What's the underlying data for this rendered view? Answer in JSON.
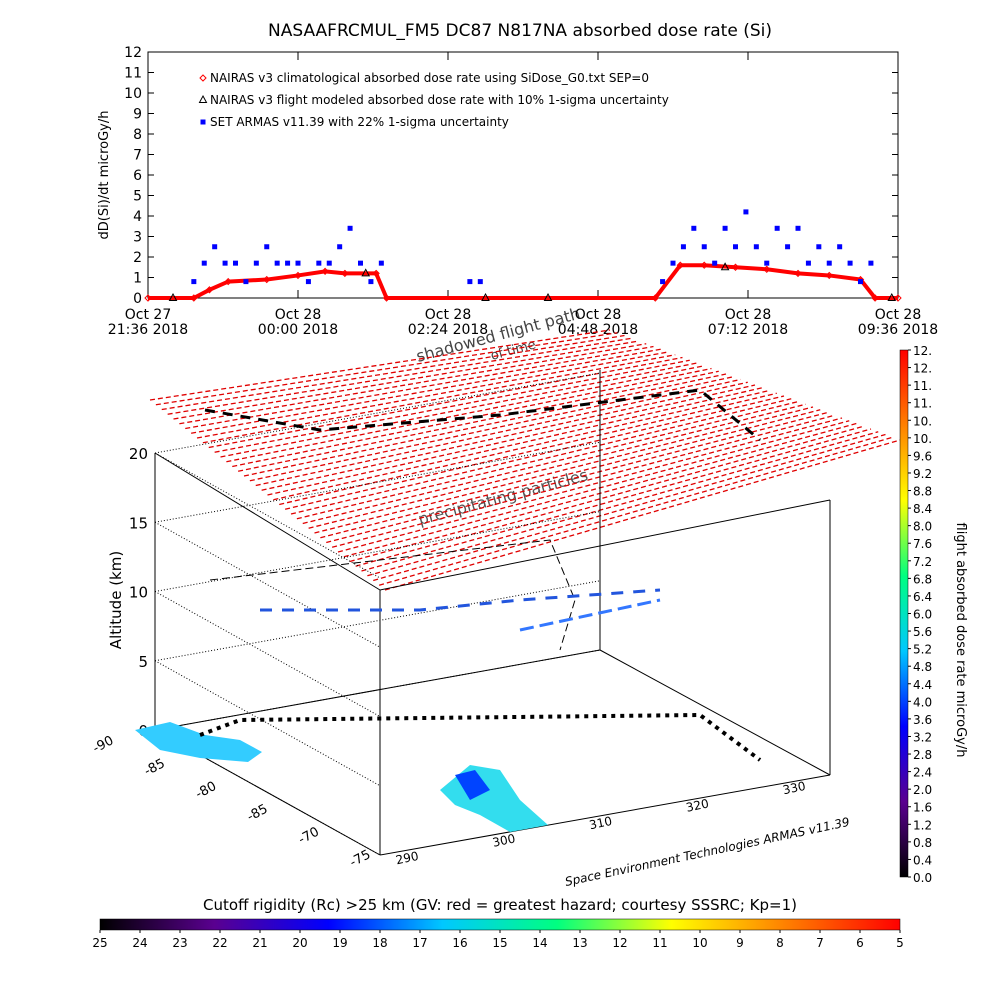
{
  "chart_data": [
    {
      "type": "line",
      "title": "NASAAFRCMUL_FM5 DC87 N817NA absorbed dose rate (Si)",
      "y_label": "dD(Si)/dt microGy/h",
      "xlim": [
        "2018-10-27T21:36",
        "2018-10-28T09:36"
      ],
      "xticks": [
        {
          "value": "2018-10-27T21:36",
          "label": [
            "Oct 27",
            "21:36 2018"
          ]
        },
        {
          "value": "2018-10-28T00:00",
          "label": [
            "Oct 28",
            "00:00 2018"
          ]
        },
        {
          "value": "2018-10-28T02:24",
          "label": [
            "Oct 28",
            "02:24 2018"
          ]
        },
        {
          "value": "2018-10-28T04:48",
          "label": [
            "Oct 28",
            "04:48 2018"
          ]
        },
        {
          "value": "2018-10-28T07:12",
          "label": [
            "Oct 28",
            "07:12 2018"
          ]
        },
        {
          "value": "2018-10-28T09:36",
          "label": [
            "Oct 28",
            "09:36 2018"
          ]
        }
      ],
      "ylim": [
        0,
        12
      ],
      "yticks": [
        0,
        1,
        2,
        3,
        4,
        5,
        6,
        7,
        8,
        9,
        10,
        11,
        12
      ],
      "series": [
        {
          "name": "NAIRAS v3 climatological absorbed dose rate using SiDose_G0.txt SEP=0",
          "color": "#ff0000",
          "marker": "diamond",
          "line": true,
          "x": [
            "2018-10-27T21:36",
            "2018-10-27T22:20",
            "2018-10-27T22:35",
            "2018-10-27T22:53",
            "2018-10-27T23:30",
            "2018-10-28T00:00",
            "2018-10-28T00:26",
            "2018-10-28T00:45",
            "2018-10-28T01:15",
            "2018-10-28T01:25",
            "2018-10-28T05:43",
            "2018-10-28T06:07",
            "2018-10-28T06:30",
            "2018-10-28T07:00",
            "2018-10-28T07:30",
            "2018-10-28T08:00",
            "2018-10-28T08:30",
            "2018-10-28T09:00",
            "2018-10-28T09:14",
            "2018-10-28T09:36"
          ],
          "values": [
            0,
            0,
            0.4,
            0.8,
            0.9,
            1.1,
            1.3,
            1.2,
            1.2,
            0,
            0,
            1.6,
            1.6,
            1.5,
            1.4,
            1.2,
            1.1,
            0.9,
            0,
            0
          ]
        },
        {
          "name": "NAIRAS v3 flight modeled absorbed dose rate with 10% 1-sigma uncertainty",
          "color": "#000000",
          "marker": "triangle",
          "line": false,
          "x": [
            "2018-10-27T22:00",
            "2018-10-28T01:05",
            "2018-10-28T03:00",
            "2018-10-28T04:00",
            "2018-10-28T06:50",
            "2018-10-28T09:30"
          ],
          "values": [
            0,
            1.2,
            0,
            0,
            1.5,
            0
          ]
        },
        {
          "name": "SET ARMAS v11.39 with 22% 1-sigma uncertainty",
          "color": "#0000ff",
          "marker": "square",
          "line": false,
          "x": [
            "2018-10-27T22:20",
            "2018-10-27T22:30",
            "2018-10-27T22:40",
            "2018-10-27T22:50",
            "2018-10-27T23:00",
            "2018-10-27T23:10",
            "2018-10-27T23:20",
            "2018-10-27T23:30",
            "2018-10-27T23:40",
            "2018-10-27T23:50",
            "2018-10-28T00:00",
            "2018-10-28T00:10",
            "2018-10-28T00:20",
            "2018-10-28T00:30",
            "2018-10-28T00:40",
            "2018-10-28T00:50",
            "2018-10-28T01:00",
            "2018-10-28T01:10",
            "2018-10-28T01:20",
            "2018-10-28T02:45",
            "2018-10-28T02:55",
            "2018-10-28T05:50",
            "2018-10-28T06:00",
            "2018-10-28T06:10",
            "2018-10-28T06:20",
            "2018-10-28T06:30",
            "2018-10-28T06:40",
            "2018-10-28T06:50",
            "2018-10-28T07:00",
            "2018-10-28T07:10",
            "2018-10-28T07:20",
            "2018-10-28T07:30",
            "2018-10-28T07:40",
            "2018-10-28T07:50",
            "2018-10-28T08:00",
            "2018-10-28T08:10",
            "2018-10-28T08:20",
            "2018-10-28T08:30",
            "2018-10-28T08:40",
            "2018-10-28T08:50",
            "2018-10-28T09:00",
            "2018-10-28T09:10"
          ],
          "values": [
            0.8,
            1.7,
            2.5,
            1.7,
            1.7,
            0.8,
            1.7,
            2.5,
            1.7,
            1.7,
            1.7,
            0.8,
            1.7,
            1.7,
            2.5,
            3.4,
            1.7,
            0.8,
            1.7,
            0.8,
            0.8,
            0.8,
            1.7,
            2.5,
            3.4,
            2.5,
            1.7,
            3.4,
            2.5,
            4.2,
            2.5,
            1.7,
            3.4,
            2.5,
            3.4,
            1.7,
            2.5,
            1.7,
            2.5,
            1.7,
            0.8,
            1.7
          ]
        }
      ]
    },
    {
      "type": "surface3d",
      "z_label": "Altitude (km)",
      "zlim": [
        0,
        20
      ],
      "zticks": [
        0,
        5,
        10,
        15,
        20
      ],
      "lat_labels": [
        "-90",
        "-85",
        "-80",
        "-85",
        "-70",
        "-75"
      ],
      "lon_labels": [
        "290",
        "300",
        "310",
        "320",
        "330"
      ],
      "annotations": [
        "precipitating particles",
        "shadowed flight path",
        "of time"
      ],
      "credit": "Space Environment Technologies ARMAS v11.39"
    },
    {
      "type": "colorbar",
      "orientation": "vertical",
      "label": "flight absorbed dose rate microGy/h",
      "lim": [
        0,
        12
      ],
      "colors": [
        "#000000",
        "#5a0090",
        "#0000ff",
        "#00c8ff",
        "#00ff80",
        "#ffff00",
        "#ff8000",
        "#ff0000"
      ],
      "ticks": [
        {
          "value": 0,
          "label": "0.0"
        },
        0.4,
        0.8,
        1.2,
        1.6,
        {
          "value": 2,
          "label": "2.0"
        },
        2.4,
        2.8,
        3.2,
        3.6,
        {
          "value": 4,
          "label": "4.0"
        },
        4.4,
        4.8,
        5.2,
        5.6,
        {
          "value": 6,
          "label": "6.0"
        },
        6.4,
        6.8,
        7.2,
        7.6,
        {
          "value": 8,
          "label": "8.0"
        },
        8.4,
        8.8,
        9.2,
        9.6,
        {
          "value": 10,
          "label": "10."
        },
        {
          "value": 10.4,
          "label": "10."
        },
        {
          "value": 10.8,
          "label": "11."
        },
        {
          "value": 11.2,
          "label": "11."
        },
        {
          "value": 11.6,
          "label": "12."
        },
        {
          "value": 12,
          "label": "12."
        }
      ]
    },
    {
      "type": "colorbar",
      "orientation": "horizontal",
      "label": "Cutoff rigidity (Rc) >25 km (GV: red = greatest hazard; courtesy SSSRC; Kp=1)",
      "lim": [
        25,
        5
      ],
      "colors": [
        "#000000",
        "#5a0090",
        "#0000ff",
        "#00c8ff",
        "#00ff80",
        "#ffff00",
        "#ff8000",
        "#ff0000"
      ],
      "ticks": [
        25,
        24,
        23,
        22,
        21,
        20,
        19,
        18,
        17,
        16,
        15,
        14,
        13,
        12,
        11,
        10,
        9,
        8,
        7,
        6,
        5
      ]
    }
  ]
}
